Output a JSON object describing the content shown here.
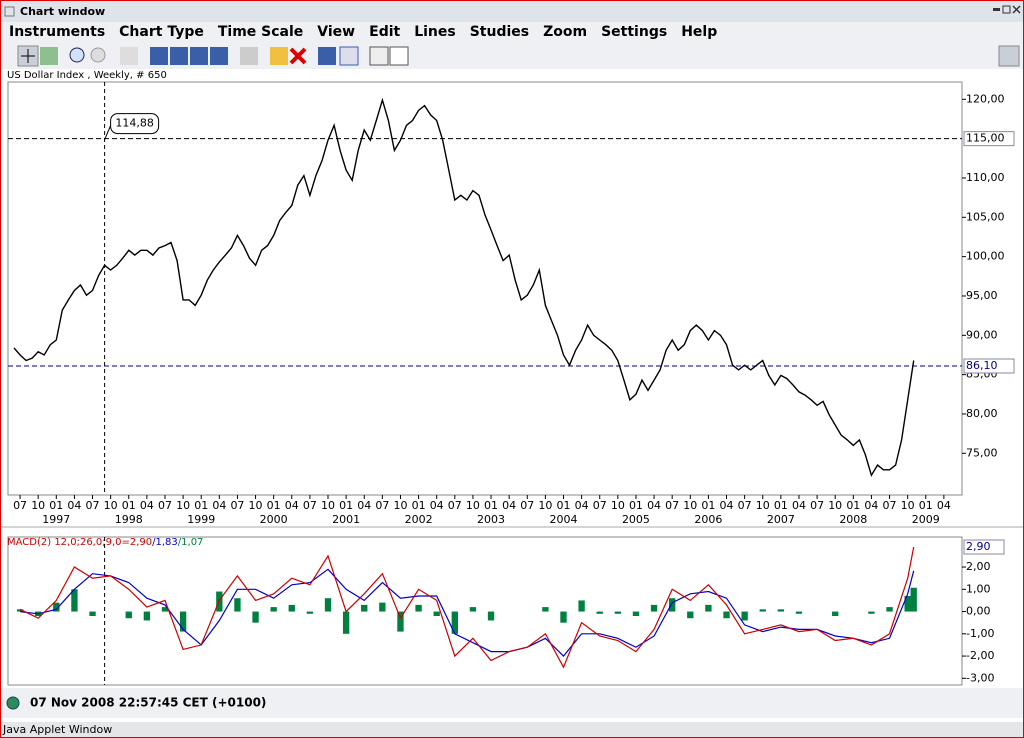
{
  "window": {
    "title": "Chart window",
    "menu": [
      "Instruments",
      "Chart Type",
      "Time Scale",
      "View",
      "Edit",
      "Lines",
      "Studies",
      "Zoom",
      "Settings",
      "Help"
    ],
    "status": "07 Nov 2008 22:57:45  CET (+0100)",
    "footer": "Java Applet Window"
  },
  "chart_data": [
    {
      "type": "line",
      "subtitle": "US Dollar Index , Weekly, # 650",
      "color": "#000000",
      "x": [
        "1996-06",
        "1996-07",
        "1996-08",
        "1996-09",
        "1996-10",
        "1996-11",
        "1996-12",
        "1997-01",
        "1997-02",
        "1997-03",
        "1997-04",
        "1997-05",
        "1997-06",
        "1997-07",
        "1997-08",
        "1997-09",
        "1997-10",
        "1997-11",
        "1997-12",
        "1998-01",
        "1998-02",
        "1998-03",
        "1998-04",
        "1998-05",
        "1998-06",
        "1998-07",
        "1998-08",
        "1998-09",
        "1998-10",
        "1998-11",
        "1998-12",
        "1999-01",
        "1999-02",
        "1999-03",
        "1999-04",
        "1999-05",
        "1999-06",
        "1999-07",
        "1999-08",
        "1999-09",
        "1999-10",
        "1999-11",
        "1999-12",
        "2000-01",
        "2000-02",
        "2000-03",
        "2000-04",
        "2000-05",
        "2000-06",
        "2000-07",
        "2000-08",
        "2000-09",
        "2000-10",
        "2000-11",
        "2000-12",
        "2001-01",
        "2001-02",
        "2001-03",
        "2001-04",
        "2001-05",
        "2001-06",
        "2001-07",
        "2001-08",
        "2001-09",
        "2001-10",
        "2001-11",
        "2001-12",
        "2002-01",
        "2002-02",
        "2002-03",
        "2002-04",
        "2002-05",
        "2002-06",
        "2002-07",
        "2002-08",
        "2002-09",
        "2002-10",
        "2002-11",
        "2002-12",
        "2003-01",
        "2003-02",
        "2003-03",
        "2003-04",
        "2003-05",
        "2003-06",
        "2003-07",
        "2003-08",
        "2003-09",
        "2003-10",
        "2003-11",
        "2003-12",
        "2004-01",
        "2004-02",
        "2004-03",
        "2004-04",
        "2004-05",
        "2004-06",
        "2004-07",
        "2004-08",
        "2004-09",
        "2004-10",
        "2004-11",
        "2004-12",
        "2005-01",
        "2005-02",
        "2005-03",
        "2005-04",
        "2005-05",
        "2005-06",
        "2005-07",
        "2005-08",
        "2005-09",
        "2005-10",
        "2005-11",
        "2005-12",
        "2006-01",
        "2006-02",
        "2006-03",
        "2006-04",
        "2006-05",
        "2006-06",
        "2006-07",
        "2006-08",
        "2006-09",
        "2006-10",
        "2006-11",
        "2006-12",
        "2007-01",
        "2007-02",
        "2007-03",
        "2007-04",
        "2007-05",
        "2007-06",
        "2007-07",
        "2007-08",
        "2007-09",
        "2007-10",
        "2007-11",
        "2007-12",
        "2008-01",
        "2008-02",
        "2008-03",
        "2008-04",
        "2008-05",
        "2008-06",
        "2008-07",
        "2008-08",
        "2008-09",
        "2008-10",
        "2008-11"
      ],
      "values": [
        88.4,
        87.5,
        86.8,
        87.1,
        87.9,
        87.5,
        88.8,
        89.4,
        93.2,
        94.5,
        95.7,
        96.4,
        95.1,
        95.7,
        97.6,
        98.9,
        98.3,
        98.9,
        99.8,
        100.8,
        100.2,
        100.8,
        100.8,
        100.2,
        101.1,
        101.4,
        101.8,
        99.5,
        94.5,
        94.5,
        93.8,
        95.1,
        97.0,
        98.3,
        99.3,
        100.2,
        101.1,
        102.7,
        101.4,
        99.8,
        98.9,
        100.8,
        101.4,
        102.7,
        104.6,
        105.6,
        106.5,
        109.1,
        110.3,
        107.8,
        110.3,
        112.2,
        114.8,
        116.7,
        113.5,
        111.0,
        109.7,
        113.5,
        116.1,
        114.8,
        117.3,
        119.9,
        117.3,
        113.5,
        114.8,
        116.7,
        117.3,
        118.6,
        119.2,
        118.0,
        117.3,
        114.8,
        111.0,
        107.2,
        107.8,
        107.2,
        108.4,
        107.8,
        105.3,
        103.4,
        101.4,
        99.5,
        100.2,
        97.0,
        94.5,
        95.1,
        96.4,
        98.3,
        93.8,
        91.9,
        90.0,
        87.5,
        86.2,
        88.1,
        89.4,
        91.3,
        90.0,
        89.4,
        88.8,
        88.1,
        86.8,
        84.3,
        81.8,
        82.5,
        84.3,
        83.0,
        84.3,
        85.6,
        88.1,
        89.4,
        88.1,
        88.8,
        90.6,
        91.3,
        90.6,
        89.4,
        90.6,
        90.0,
        88.8,
        86.2,
        85.6,
        86.2,
        85.6,
        86.2,
        86.8,
        84.9,
        83.7,
        84.9,
        84.5,
        83.7,
        82.8,
        82.4,
        81.8,
        81.1,
        81.6,
        79.9,
        78.6,
        77.3,
        76.7,
        76.0,
        76.7,
        74.8,
        72.2,
        73.5,
        72.9,
        72.9,
        73.5,
        76.7,
        81.8,
        86.8
      ],
      "xlim": [
        "1996-05",
        "2009-07"
      ],
      "ylim": [
        69.7,
        122.2
      ],
      "yticks": [
        {
          "value": 75,
          "label": "75,00"
        },
        {
          "value": 80,
          "label": "80,00"
        },
        {
          "value": 85,
          "label": "85,00"
        },
        {
          "value": 90,
          "label": "90,00"
        },
        {
          "value": 95,
          "label": "95,00"
        },
        {
          "value": 100,
          "label": "100,00"
        },
        {
          "value": 105,
          "label": "105,00"
        },
        {
          "value": 110,
          "label": "110,00"
        },
        {
          "value": 120,
          "label": "120,00"
        }
      ],
      "xticks": [
        {
          "value": "1996-07",
          "label": "07"
        },
        {
          "value": "1996-10",
          "label": "10"
        },
        {
          "value": "1997-01",
          "label": "01"
        },
        {
          "value": "1997-04",
          "label": "04"
        },
        {
          "value": "1997-07",
          "label": "07"
        },
        {
          "value": "1997-10",
          "label": "10"
        },
        {
          "value": "1998-01",
          "label": "01"
        },
        {
          "value": "1998-04",
          "label": "04"
        },
        {
          "value": "1998-07",
          "label": "07"
        },
        {
          "value": "1998-10",
          "label": "10"
        },
        {
          "value": "1999-01",
          "label": "01"
        },
        {
          "value": "1999-04",
          "label": "04"
        },
        {
          "value": "1999-07",
          "label": "07"
        },
        {
          "value": "1999-10",
          "label": "10"
        },
        {
          "value": "2000-01",
          "label": "01"
        },
        {
          "value": "2000-04",
          "label": "04"
        },
        {
          "value": "2000-07",
          "label": "07"
        },
        {
          "value": "2000-10",
          "label": "10"
        },
        {
          "value": "2001-01",
          "label": "01"
        },
        {
          "value": "2001-04",
          "label": "04"
        },
        {
          "value": "2001-07",
          "label": "07"
        },
        {
          "value": "2001-10",
          "label": "10"
        },
        {
          "value": "2002-01",
          "label": "01"
        },
        {
          "value": "2002-04",
          "label": "04"
        },
        {
          "value": "2002-07",
          "label": "07"
        },
        {
          "value": "2002-10",
          "label": "10"
        },
        {
          "value": "2003-01",
          "label": "01"
        },
        {
          "value": "2003-04",
          "label": "04"
        },
        {
          "value": "2003-07",
          "label": "07"
        },
        {
          "value": "2003-10",
          "label": "10"
        },
        {
          "value": "2004-01",
          "label": "01"
        },
        {
          "value": "2004-04",
          "label": "04"
        },
        {
          "value": "2004-07",
          "label": "07"
        },
        {
          "value": "2004-10",
          "label": "10"
        },
        {
          "value": "2005-01",
          "label": "01"
        },
        {
          "value": "2005-04",
          "label": "04"
        },
        {
          "value": "2005-07",
          "label": "07"
        },
        {
          "value": "2005-10",
          "label": "10"
        },
        {
          "value": "2006-01",
          "label": "01"
        },
        {
          "value": "2006-04",
          "label": "04"
        },
        {
          "value": "2006-07",
          "label": "07"
        },
        {
          "value": "2006-10",
          "label": "10"
        },
        {
          "value": "2007-01",
          "label": "01"
        },
        {
          "value": "2007-04",
          "label": "04"
        },
        {
          "value": "2007-07",
          "label": "07"
        },
        {
          "value": "2007-10",
          "label": "10"
        },
        {
          "value": "2008-01",
          "label": "01"
        },
        {
          "value": "2008-04",
          "label": "04"
        },
        {
          "value": "2008-07",
          "label": "07"
        },
        {
          "value": "2008-10",
          "label": "10"
        },
        {
          "value": "2009-01",
          "label": "01"
        },
        {
          "value": "2009-04",
          "label": "04"
        }
      ],
      "year_labels": [
        {
          "value": "1997-01",
          "label": "1997"
        },
        {
          "value": "1998-01",
          "label": "1998"
        },
        {
          "value": "1999-01",
          "label": "1999"
        },
        {
          "value": "2000-01",
          "label": "2000"
        },
        {
          "value": "2001-01",
          "label": "2001"
        },
        {
          "value": "2002-01",
          "label": "2002"
        },
        {
          "value": "2003-01",
          "label": "2003"
        },
        {
          "value": "2004-01",
          "label": "2004"
        },
        {
          "value": "2005-01",
          "label": "2005"
        },
        {
          "value": "2006-01",
          "label": "2006"
        },
        {
          "value": "2007-01",
          "label": "2007"
        },
        {
          "value": "2008-01",
          "label": "2008"
        },
        {
          "value": "2009-01",
          "label": "2009"
        }
      ],
      "hlines": [
        {
          "value": 115,
          "label": "115,00",
          "color": "#000000"
        },
        {
          "value": 86.1,
          "label": "86,10",
          "color": "#000080"
        }
      ],
      "vline": "1997-09",
      "annotation": {
        "x": "1997-09",
        "y": 114.88,
        "label": "114,88"
      }
    },
    {
      "type": "line",
      "title": [
        {
          "text": "MACD(2) 12,0;26,0;9,0=2,90",
          "color": "#cc0000"
        },
        {
          "text": "/1,83",
          "color": "#0000cc"
        },
        {
          "text": "/1,07",
          "color": "#008040"
        }
      ],
      "x": [
        "1996-07",
        "1996-10",
        "1997-01",
        "1997-04",
        "1997-07",
        "1997-10",
        "1998-01",
        "1998-04",
        "1998-07",
        "1998-10",
        "1999-01",
        "1999-04",
        "1999-07",
        "1999-10",
        "2000-01",
        "2000-04",
        "2000-07",
        "2000-10",
        "2001-01",
        "2001-04",
        "2001-07",
        "2001-10",
        "2002-01",
        "2002-04",
        "2002-07",
        "2002-10",
        "2003-01",
        "2003-04",
        "2003-07",
        "2003-10",
        "2004-01",
        "2004-04",
        "2004-07",
        "2004-10",
        "2005-01",
        "2005-04",
        "2005-07",
        "2005-10",
        "2006-01",
        "2006-04",
        "2006-07",
        "2006-10",
        "2007-01",
        "2007-04",
        "2007-07",
        "2007-10",
        "2008-01",
        "2008-04",
        "2008-07",
        "2008-10",
        "2008-11"
      ],
      "series": [
        {
          "type": "bar",
          "color": "#008040",
          "values": [
            0.1,
            -0.2,
            0.4,
            1.0,
            -0.2,
            0.0,
            -0.3,
            -0.4,
            0.2,
            -0.9,
            0.0,
            0.9,
            0.6,
            -0.5,
            0.2,
            0.3,
            -0.1,
            0.6,
            -1.0,
            0.3,
            0.4,
            -0.9,
            0.3,
            -0.2,
            -1.0,
            0.2,
            -0.4,
            0.0,
            0.0,
            0.2,
            -0.5,
            0.5,
            -0.1,
            -0.1,
            -0.2,
            0.3,
            0.6,
            -0.3,
            0.3,
            -0.3,
            -0.4,
            0.1,
            0.1,
            -0.1,
            0.0,
            -0.2,
            0.0,
            -0.1,
            0.2,
            0.7,
            1.07
          ]
        },
        {
          "type": "line",
          "color": "#0000cc",
          "values": [
            0.0,
            -0.1,
            0.1,
            1.0,
            1.7,
            1.6,
            1.3,
            0.6,
            0.3,
            -0.8,
            -1.5,
            -0.4,
            1.0,
            1.0,
            0.6,
            1.2,
            1.3,
            1.9,
            1.0,
            0.5,
            1.3,
            0.6,
            0.7,
            0.7,
            -1.0,
            -1.4,
            -1.8,
            -1.8,
            -1.6,
            -1.2,
            -2.0,
            -1.0,
            -1.0,
            -1.2,
            -1.6,
            -1.1,
            0.4,
            0.8,
            0.9,
            0.6,
            -0.6,
            -0.9,
            -0.7,
            -0.8,
            -0.8,
            -1.1,
            -1.2,
            -1.4,
            -1.2,
            0.8,
            1.83
          ]
        },
        {
          "type": "line",
          "color": "#cc0000",
          "values": [
            0.1,
            -0.3,
            0.5,
            2.0,
            1.5,
            1.6,
            1.0,
            0.2,
            0.5,
            -1.7,
            -1.5,
            0.5,
            1.6,
            0.5,
            0.8,
            1.5,
            1.2,
            2.5,
            0.0,
            0.8,
            1.7,
            -0.3,
            1.0,
            0.5,
            -2.0,
            -1.2,
            -2.2,
            -1.8,
            -1.6,
            -1.0,
            -2.5,
            -0.5,
            -1.1,
            -1.3,
            -1.8,
            -0.8,
            1.0,
            0.5,
            1.2,
            0.3,
            -1.0,
            -0.8,
            -0.6,
            -0.9,
            -0.8,
            -1.3,
            -1.2,
            -1.5,
            -1.0,
            1.5,
            2.9
          ]
        }
      ],
      "xlim": [
        "1996-05",
        "2009-07"
      ],
      "ylim": [
        -3.3,
        3.35
      ],
      "yticks": [
        {
          "value": -3,
          "label": "-3,00"
        },
        {
          "value": -2,
          "label": "-2,00"
        },
        {
          "value": -1,
          "label": "-1,00"
        },
        {
          "value": 0,
          "label": "0,00"
        },
        {
          "value": 1,
          "label": "1,00"
        },
        {
          "value": 2,
          "label": "2,00"
        }
      ],
      "current": {
        "value": 2.9,
        "label": "2,90"
      }
    }
  ]
}
